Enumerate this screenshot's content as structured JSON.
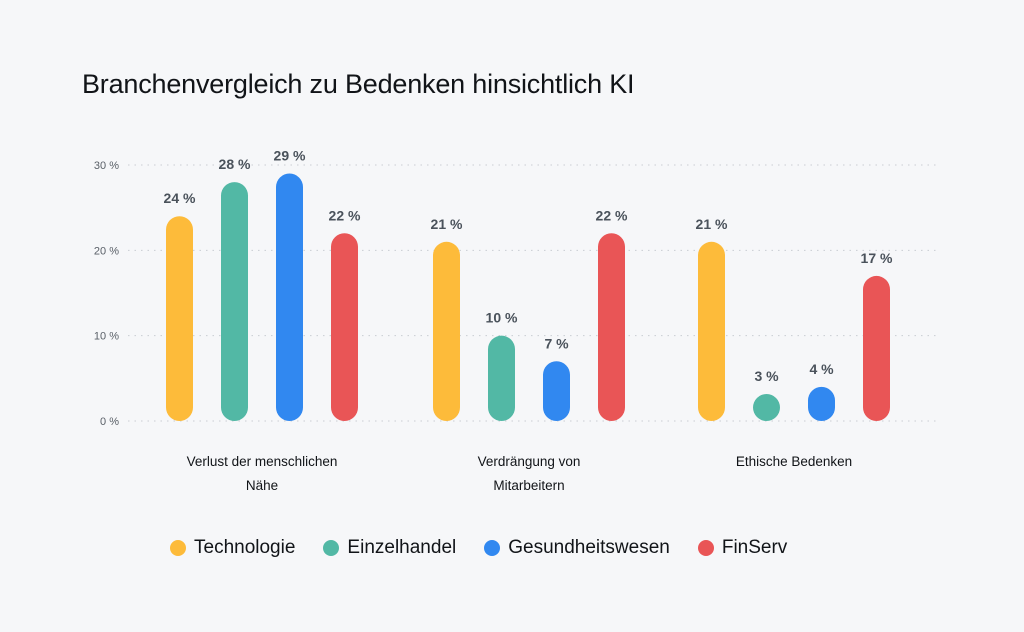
{
  "chart_data": {
    "type": "bar",
    "title": "Branchenvergleich zu Bedenken hinsichtlich KI",
    "xlabel": "",
    "ylabel": "",
    "ylim": [
      0,
      30
    ],
    "yticks": [
      0,
      10,
      20,
      30
    ],
    "ytick_labels": [
      "0 %",
      "10 %",
      "20 %",
      "30 %"
    ],
    "grid": true,
    "legend_position": "bottom",
    "categories": [
      [
        "Verlust der menschlichen",
        "Nähe"
      ],
      [
        "Verdrängung von",
        "Mitarbeitern"
      ],
      [
        "Ethische Bedenken"
      ]
    ],
    "series": [
      {
        "name": "Technologie",
        "color": "#FDBB3A",
        "values": [
          24,
          21,
          21
        ],
        "labels": [
          "24 %",
          "21 %",
          "21 %"
        ]
      },
      {
        "name": "Einzelhandel",
        "color": "#52B8A5",
        "values": [
          28,
          10,
          3
        ],
        "labels": [
          "28 %",
          "10 %",
          "3 %"
        ]
      },
      {
        "name": "Gesundheitswesen",
        "color": "#3188F0",
        "values": [
          29,
          7,
          4
        ],
        "labels": [
          "29 %",
          "7 %",
          "4 %"
        ]
      },
      {
        "name": "FinServ",
        "color": "#E95556",
        "values": [
          22,
          22,
          17
        ],
        "labels": [
          "22 %",
          "22 %",
          "17 %"
        ]
      }
    ]
  }
}
